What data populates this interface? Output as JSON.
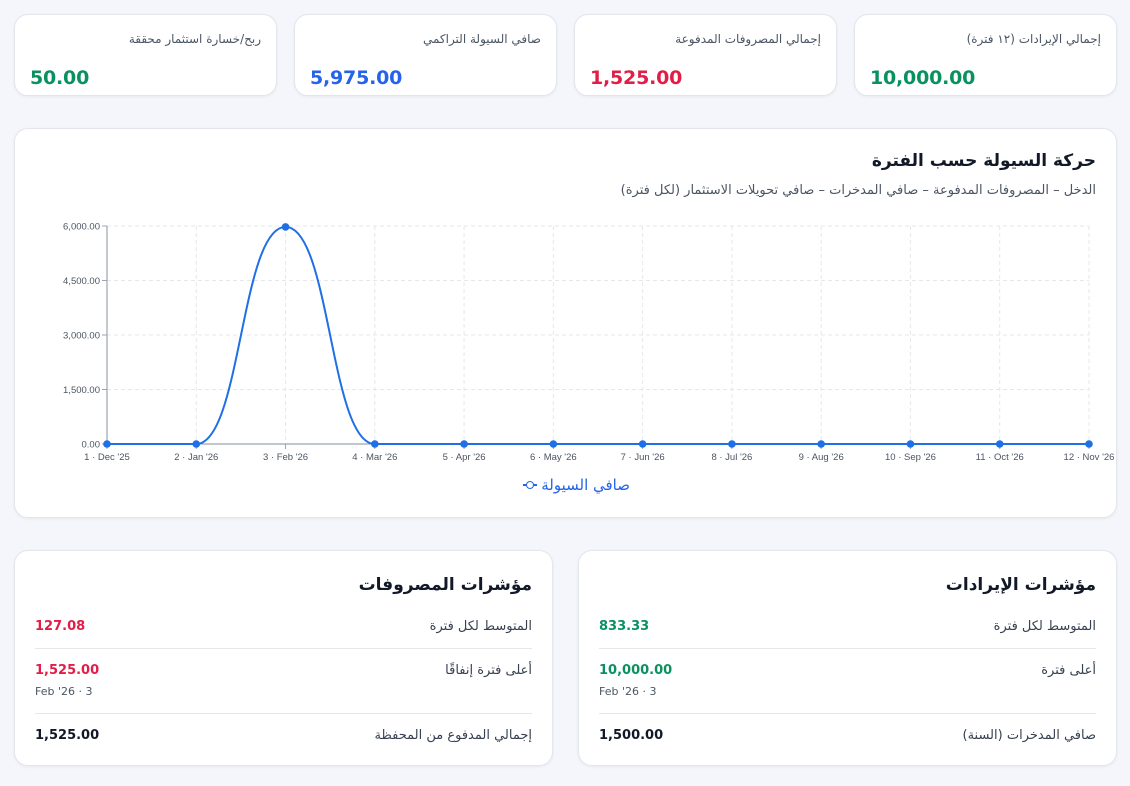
{
  "colors": {
    "background": "#f5f6fb",
    "green": "#0a9160",
    "blue": "#2563eb",
    "red": "#e11d48",
    "dark": "#111827",
    "line": "#1f6fe5"
  },
  "kpis": [
    {
      "label": "ربح/خسارة استثمار محققة",
      "value": "50.00",
      "color": "green"
    },
    {
      "label": "صافي السيولة التراكمي",
      "value": "5,975.00",
      "color": "blue"
    },
    {
      "label": "إجمالي المصروفات المدفوعة",
      "value": "1,525.00",
      "color": "red"
    },
    {
      "label": "إجمالي الإيرادات (١٢ فترة)",
      "value": "10,000.00",
      "color": "green"
    }
  ],
  "chart": {
    "title": "حركة السيولة حسب الفترة",
    "subtitle": "الدخل – المصروفات المدفوعة – صافي المدخرات – صافي تحويلات الاستثمار (لكل فترة)",
    "legend_label": "صافي السيولة",
    "legend_icon": "line-marker-icon"
  },
  "chart_data": {
    "type": "line",
    "title": "حركة السيولة حسب الفترة",
    "subtitle": "الدخل – المصروفات المدفوعة – صافي المدخرات – صافي تحويلات الاستثمار (لكل فترة)",
    "categories": [
      "1 · Dec '25",
      "2 · Jan '26",
      "3 · Feb '26",
      "4 · Mar '26",
      "5 · Apr '26",
      "6 · May '26",
      "7 · Jun '26",
      "8 · Jul '26",
      "9 · Aug '26",
      "10 · Sep '26",
      "11 · Oct '26",
      "12 · Nov '26"
    ],
    "series": [
      {
        "name": "صافي السيولة",
        "values": [
          0,
          0,
          5975,
          0,
          0,
          0,
          0,
          0,
          0,
          0,
          0,
          0
        ]
      }
    ],
    "yticks": [
      "0.00",
      "1,500.00",
      "3,000.00",
      "4,500.00",
      "6,000.00"
    ],
    "ylim": [
      0,
      6000
    ],
    "xlabel": "",
    "ylabel": "",
    "grid": true,
    "legend_position": "bottom",
    "smooth": true
  },
  "expenses": {
    "title": "مؤشرات المصروفات",
    "rows": [
      {
        "label": "المتوسط لكل فترة",
        "value": "127.08",
        "color": "red"
      },
      {
        "label": "أعلى فترة إنفاقًا",
        "value": "1,525.00",
        "sub": "Feb '26 · 3",
        "color": "red"
      },
      {
        "label": "إجمالي المدفوع من المحفظة",
        "value": "1,525.00",
        "color": "dark"
      }
    ]
  },
  "revenues": {
    "title": "مؤشرات الإيرادات",
    "rows": [
      {
        "label": "المتوسط لكل فترة",
        "value": "833.33",
        "color": "green"
      },
      {
        "label": "أعلى فترة",
        "value": "10,000.00",
        "sub": "Feb '26 · 3",
        "color": "green"
      },
      {
        "label": "صافي المدخرات (السنة)",
        "value": "1,500.00",
        "color": "dark"
      }
    ]
  }
}
